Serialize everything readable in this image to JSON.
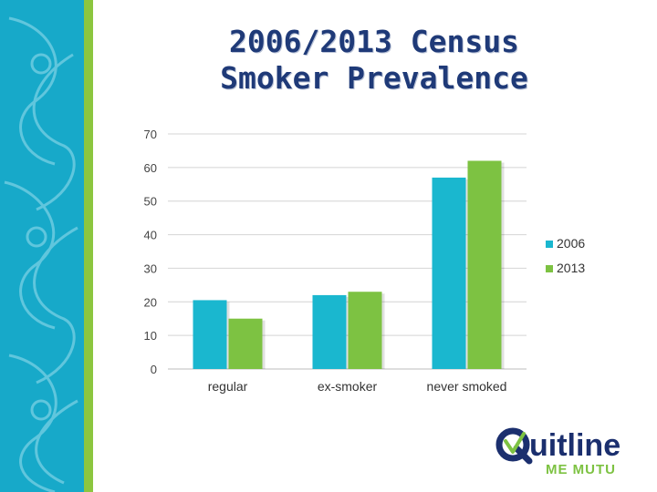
{
  "slide": {
    "title_line1": "2006/2013 Census",
    "title_line2": "Smoker Prevalence"
  },
  "logo": {
    "brand_main": "uitline",
    "brand_sub": "ME MUTU"
  },
  "colors": {
    "side_band": "#17a9c9",
    "side_stripe": "#8cc63f",
    "series_2006": "#1ab7cf",
    "series_2013": "#7dc242",
    "title": "#1f3a78",
    "logo_navy": "#1b2f6e",
    "logo_green": "#7dc242"
  },
  "chart_data": {
    "type": "bar",
    "categories": [
      "regular",
      "ex-smoker",
      "never smoked"
    ],
    "series": [
      {
        "name": "2006",
        "values": [
          20.5,
          22,
          57
        ]
      },
      {
        "name": "2013",
        "values": [
          15,
          23,
          62
        ]
      }
    ],
    "yticks": [
      0,
      10,
      20,
      30,
      40,
      50,
      60,
      70
    ],
    "ylim": [
      0,
      70
    ],
    "grid": true,
    "legend": "right",
    "xlabel": "",
    "ylabel": ""
  }
}
